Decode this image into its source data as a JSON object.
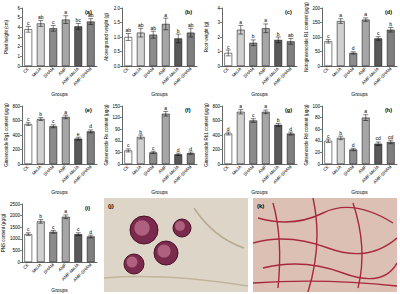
{
  "chart_data": [
    {
      "type": "bar",
      "title": "(a)",
      "x_label": "Groups",
      "y_label": "Plant height (cm)",
      "categories": [
        "CK",
        "MeJA",
        "SHAM",
        "AMF",
        "AMF-MeJA",
        "AMF-SHAM"
      ],
      "values": [
        3.8,
        4.4,
        3.9,
        4.8,
        4.1,
        4.6
      ],
      "errors": [
        0.3,
        0.3,
        0.3,
        0.4,
        0.3,
        0.3
      ],
      "letters": [
        "c",
        "ab",
        "c",
        "a",
        "bc",
        "ab"
      ],
      "colors": [
        "#ffffff",
        "#d0d0d0",
        "#8c8c8c",
        "#a6a6a6",
        "#595959",
        "#7f7f7f"
      ],
      "ylim": [
        0,
        6
      ],
      "yticks": [
        0,
        1,
        2,
        3,
        4,
        5,
        6
      ],
      "grid": false
    },
    {
      "type": "bar",
      "title": "(b)",
      "x_label": "Groups",
      "y_label": "Aboveground weight (g)",
      "categories": [
        "CK",
        "MeJA",
        "SHAM",
        "AMF",
        "AMF-MeJA",
        "AMF-SHAM"
      ],
      "values": [
        1.0,
        1.15,
        1.08,
        1.45,
        0.95,
        1.15
      ],
      "errors": [
        0.12,
        0.15,
        0.12,
        0.2,
        0.15,
        0.15
      ],
      "letters": [
        "ab",
        "ab",
        "ab",
        "a",
        "b",
        "ab"
      ],
      "colors": [
        "#ffffff",
        "#d0d0d0",
        "#8c8c8c",
        "#a6a6a6",
        "#595959",
        "#7f7f7f"
      ],
      "ylim": [
        0,
        2
      ],
      "yticks": [
        {
          "value": 0,
          "label": "0.0"
        },
        {
          "value": 0.5,
          "label": "0.5"
        },
        {
          "value": 1,
          "label": "1.0"
        },
        {
          "value": 1.5,
          "label": "1.5"
        },
        {
          "value": 2,
          "label": "2.0"
        }
      ],
      "grid": false
    },
    {
      "type": "bar",
      "title": "(c)",
      "x_label": "Groups",
      "y_label": "Root weight (g)",
      "categories": [
        "CK",
        "MeJA",
        "SHAM",
        "AMF",
        "AMF-MeJA",
        "AMF-SHAM"
      ],
      "values": [
        0.9,
        2.5,
        1.6,
        2.6,
        1.8,
        1.7
      ],
      "errors": [
        0.2,
        0.3,
        0.2,
        0.3,
        0.2,
        0.2
      ],
      "letters": [
        "c",
        "a",
        "b",
        "a",
        "b",
        "ab"
      ],
      "colors": [
        "#ffffff",
        "#d0d0d0",
        "#8c8c8c",
        "#a6a6a6",
        "#595959",
        "#7f7f7f"
      ],
      "ylim": [
        0,
        4
      ],
      "yticks": [
        0,
        1,
        2,
        3,
        4
      ],
      "grid": false
    },
    {
      "type": "bar",
      "title": "(d)",
      "x_label": "Groups",
      "y_label": "Notoginsenoside R1 content (μg/g)",
      "categories": [
        "CK",
        "MeJA",
        "SHAM",
        "AMF",
        "AMF-MeJA",
        "AMF-SHAM"
      ],
      "values": [
        85,
        155,
        45,
        160,
        95,
        125
      ],
      "errors": [
        6,
        8,
        4,
        6,
        6,
        8
      ],
      "letters": [
        "c",
        "a",
        "d",
        "a",
        "c",
        "b"
      ],
      "colors": [
        "#ffffff",
        "#d0d0d0",
        "#8c8c8c",
        "#a6a6a6",
        "#595959",
        "#7f7f7f"
      ],
      "ylim": [
        0,
        200
      ],
      "yticks": [
        0,
        50,
        100,
        150,
        200
      ],
      "grid": false
    },
    {
      "type": "bar",
      "title": "(e)",
      "x_label": "Groups",
      "y_label": "Ginsenoside Rg1 content (μg/g)",
      "categories": [
        "CK",
        "MeJA",
        "SHAM",
        "AMF",
        "AMF-MeJA",
        "AMF-SHAM"
      ],
      "values": [
        550,
        620,
        520,
        650,
        350,
        450
      ],
      "errors": [
        20,
        20,
        20,
        25,
        20,
        20
      ],
      "letters": [
        "c",
        "b",
        "c",
        "a",
        "e",
        "d"
      ],
      "colors": [
        "#ffffff",
        "#d0d0d0",
        "#8c8c8c",
        "#a6a6a6",
        "#595959",
        "#7f7f7f"
      ],
      "ylim": [
        0,
        800
      ],
      "yticks": [
        0,
        200,
        400,
        600,
        800
      ],
      "grid": false
    },
    {
      "type": "bar",
      "title": "(f)",
      "x_label": "Groups",
      "y_label": "Ginsenoside Re content (μg/g)",
      "categories": [
        "CK",
        "MeJA",
        "SHAM",
        "AMF",
        "AMF-MeJA",
        "AMF-SHAM"
      ],
      "values": [
        35,
        70,
        30,
        130,
        25,
        28
      ],
      "errors": [
        4,
        5,
        3,
        6,
        3,
        3
      ],
      "letters": [
        "c",
        "b",
        "c",
        "a",
        "d",
        "d"
      ],
      "colors": [
        "#ffffff",
        "#d0d0d0",
        "#8c8c8c",
        "#a6a6a6",
        "#595959",
        "#7f7f7f"
      ],
      "ylim": [
        0,
        150
      ],
      "yticks": [
        0,
        30,
        60,
        90,
        120,
        150
      ],
      "grid": false
    },
    {
      "type": "bar",
      "title": "(g)",
      "x_label": "Groups",
      "y_label": "Ginsenoside Rb1 content (μg/g)",
      "categories": [
        "CK",
        "MeJA",
        "SHAM",
        "AMF",
        "AMF-MeJA",
        "AMF-SHAM"
      ],
      "values": [
        420,
        720,
        600,
        720,
        540,
        420
      ],
      "errors": [
        20,
        30,
        25,
        25,
        20,
        20
      ],
      "letters": [
        "d",
        "a",
        "c",
        "a",
        "b",
        "d"
      ],
      "colors": [
        "#ffffff",
        "#d0d0d0",
        "#8c8c8c",
        "#a6a6a6",
        "#595959",
        "#7f7f7f"
      ],
      "ylim": [
        0,
        800
      ],
      "yticks": [
        0,
        200,
        400,
        600,
        800
      ],
      "grid": false
    },
    {
      "type": "bar",
      "title": "(h)",
      "x_label": "Groups",
      "y_label": "Ginsenoside Rd content (μg/g)",
      "categories": [
        "CK",
        "MeJA",
        "SHAM",
        "AMF",
        "AMF-MeJA",
        "AMF-SHAM"
      ],
      "values": [
        40,
        45,
        25,
        80,
        35,
        38
      ],
      "errors": [
        3,
        3,
        2,
        5,
        3,
        3
      ],
      "letters": [
        "c",
        "b",
        "d",
        "a",
        "cd",
        "cd"
      ],
      "colors": [
        "#ffffff",
        "#d0d0d0",
        "#8c8c8c",
        "#a6a6a6",
        "#595959",
        "#7f7f7f"
      ],
      "ylim": [
        0,
        100
      ],
      "yticks": [
        0,
        20,
        40,
        60,
        80,
        100
      ],
      "grid": false
    },
    {
      "type": "bar",
      "title": "(i)",
      "x_label": "Groups",
      "y_label": "PNS content (μg/g)",
      "categories": [
        "CK",
        "MeJA",
        "SHAM",
        "AMF",
        "AMF-MeJA",
        "AMF-SHAM"
      ],
      "values": [
        1200,
        1750,
        1300,
        1950,
        1200,
        1100
      ],
      "errors": [
        60,
        80,
        60,
        80,
        60,
        60
      ],
      "letters": [
        "c",
        "b",
        "c",
        "a",
        "c",
        "d"
      ],
      "colors": [
        "#ffffff",
        "#d0d0d0",
        "#8c8c8c",
        "#a6a6a6",
        "#595959",
        "#7f7f7f"
      ],
      "ylim": [
        0,
        2500
      ],
      "yticks": [
        0,
        500,
        1000,
        1500,
        2000,
        2500
      ],
      "grid": false
    }
  ],
  "images": [
    {
      "label": "(j)"
    },
    {
      "label": "(k)"
    }
  ]
}
